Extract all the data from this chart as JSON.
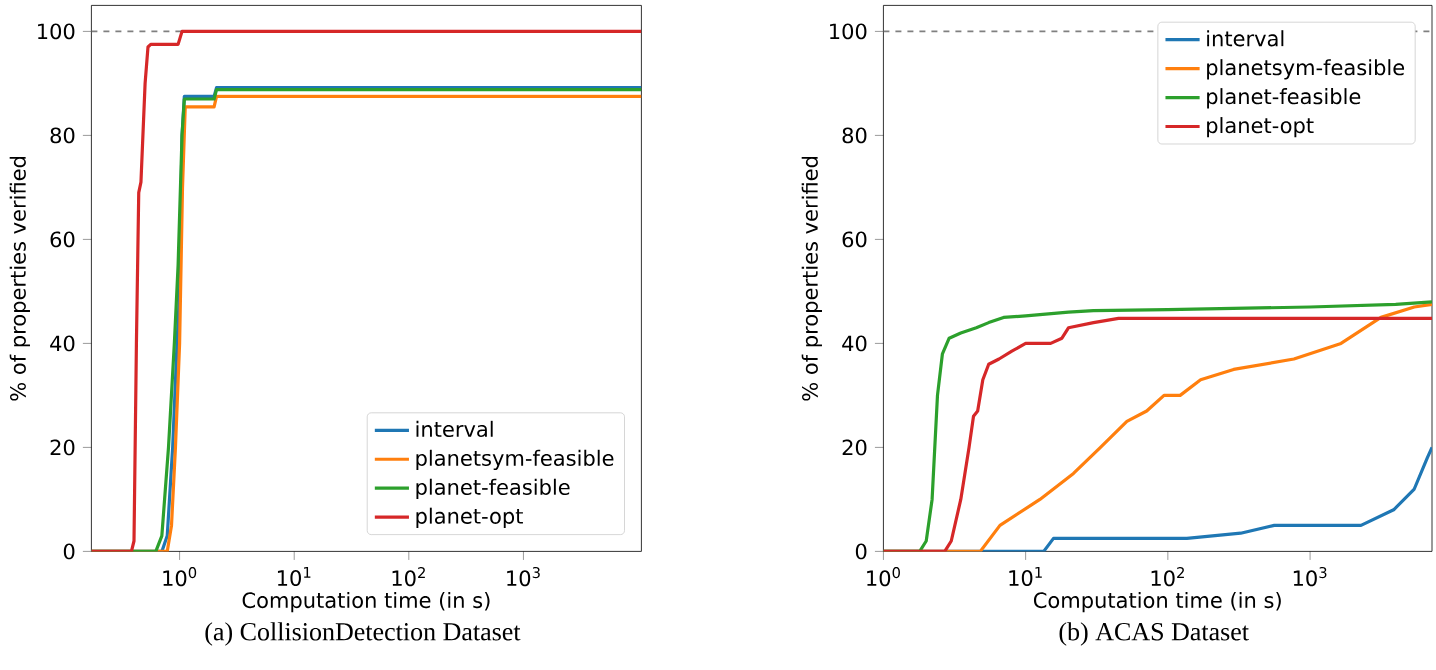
{
  "chart_data": [
    {
      "type": "line",
      "title": "(a)  CollisionDetection Dataset",
      "xlabel": "Computation time (in s)",
      "ylabel": "% of properties verified",
      "log": "x",
      "xlim": [
        0.17,
        10700
      ],
      "ylim": [
        0,
        105
      ],
      "xticks": [
        {
          "value": 1,
          "label": "10$^{0}$"
        },
        {
          "value": 10,
          "label": "10$^{1}$"
        },
        {
          "value": 100,
          "label": "10$^{2}$"
        },
        {
          "value": 1000,
          "label": "10$^{3}$"
        }
      ],
      "yticks": [
        0,
        20,
        40,
        60,
        80,
        100
      ],
      "legend": "bottom right",
      "marker": "none",
      "line_style": "solid",
      "ref_lines": [
        {
          "axis": "y",
          "value": 100,
          "color": "#808080",
          "line_style": "dashed"
        }
      ],
      "series": [
        {
          "name": "interval",
          "color": "#1f77b4",
          "x": [
            0.17,
            0.7,
            0.78,
            0.87,
            0.95,
            1.0,
            1.05,
            1.1,
            2.0,
            2.1,
            10700
          ],
          "values": [
            0,
            0,
            3,
            20,
            40,
            50,
            80,
            87.5,
            87.5,
            89.2,
            89.2
          ]
        },
        {
          "name": "planetsym-feasible",
          "color": "#ff7f0e",
          "x": [
            0.17,
            0.78,
            0.85,
            0.92,
            1.0,
            1.06,
            1.12,
            2.0,
            2.1,
            10700
          ],
          "values": [
            0,
            0,
            5,
            20,
            40,
            70,
            85.5,
            85.5,
            87.5,
            87.5
          ]
        },
        {
          "name": "planet-feasible",
          "color": "#2ca02c",
          "x": [
            0.17,
            0.62,
            0.7,
            0.8,
            0.9,
            0.97,
            1.05,
            1.1,
            2.0,
            2.1,
            10700
          ],
          "values": [
            0,
            0,
            3,
            20,
            40,
            55,
            80,
            87,
            87,
            88.8,
            88.8
          ]
        },
        {
          "name": "planet-opt",
          "color": "#d62728",
          "x": [
            0.17,
            0.38,
            0.4,
            0.42,
            0.44,
            0.46,
            0.5,
            0.53,
            0.56,
            0.97,
            1.05,
            10700
          ],
          "values": [
            0,
            0,
            2,
            40,
            69,
            71,
            90,
            97,
            97.5,
            97.5,
            100,
            100
          ]
        }
      ]
    },
    {
      "type": "line",
      "title": "(b)  ACAS Dataset",
      "xlabel": "Computation time (in s)",
      "ylabel": "% of properties verified",
      "log": "x",
      "xlim": [
        1,
        7200
      ],
      "ylim": [
        0,
        105
      ],
      "xticks": [
        {
          "value": 1,
          "label": "10$^{0}$"
        },
        {
          "value": 10,
          "label": "10$^{1}$"
        },
        {
          "value": 100,
          "label": "10$^{2}$"
        },
        {
          "value": 1000,
          "label": "10$^{3}$"
        }
      ],
      "yticks": [
        0,
        20,
        40,
        60,
        80,
        100
      ],
      "legend": "top right",
      "marker": "none",
      "line_style": "solid",
      "ref_lines": [
        {
          "axis": "y",
          "value": 100,
          "color": "#808080",
          "line_style": "dashed"
        }
      ],
      "series": [
        {
          "name": "interval",
          "color": "#1f77b4",
          "x": [
            1,
            13.4,
            15.7,
            136,
            325,
            560,
            2280,
            3870,
            5400,
            6670,
            7200
          ],
          "values": [
            0,
            0,
            2.5,
            2.5,
            3.5,
            5,
            5,
            8,
            12,
            18,
            20
          ]
        },
        {
          "name": "planetsym-feasible",
          "color": "#ff7f0e",
          "x": [
            1,
            4.8,
            6.6,
            12.6,
            21.7,
            33.6,
            51.5,
            71,
            94,
            122,
            170,
            290,
            770,
            1650,
            3150,
            5400,
            7200
          ],
          "values": [
            0,
            0,
            5,
            10,
            15,
            20,
            25,
            27,
            30,
            30,
            33,
            35,
            37,
            40,
            45,
            47,
            47.5
          ]
        },
        {
          "name": "planet-feasible",
          "color": "#2ca02c",
          "x": [
            1,
            1.8,
            2.0,
            2.2,
            2.4,
            2.6,
            2.9,
            3.5,
            4.5,
            5.5,
            7,
            10,
            20,
            30,
            100,
            1000,
            4000,
            7200
          ],
          "values": [
            0,
            0,
            2,
            10,
            30,
            38,
            41,
            42,
            43,
            44,
            45,
            45.3,
            46,
            46.3,
            46.5,
            47,
            47.5,
            48
          ]
        },
        {
          "name": "planet-opt",
          "color": "#d62728",
          "x": [
            1,
            2.7,
            3.0,
            3.5,
            4.0,
            4.3,
            4.6,
            5,
            5.5,
            6.5,
            8,
            10,
            15,
            18,
            20,
            30,
            45,
            7200
          ],
          "values": [
            0,
            0,
            2,
            10,
            20,
            26,
            27,
            33,
            36,
            37,
            38.5,
            40,
            40,
            41,
            43,
            44,
            44.8,
            44.8
          ]
        }
      ]
    }
  ]
}
